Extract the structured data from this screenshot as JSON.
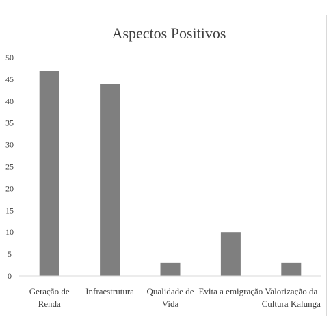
{
  "chart_data": {
    "type": "bar",
    "title": "Aspectos Positivos",
    "categories": [
      [
        "Geração de",
        "Renda"
      ],
      [
        "Infraestrutura"
      ],
      [
        "Qualidade de",
        "Vida"
      ],
      [
        "Evita a emigração"
      ],
      [
        "Valorização da",
        "Cultura Kalunga"
      ]
    ],
    "values": [
      47,
      44,
      3,
      10,
      3
    ],
    "ylim": [
      0,
      50
    ],
    "yticks": [
      "0",
      "5",
      "10",
      "15",
      "20",
      "25",
      "30",
      "35",
      "40",
      "45",
      "50"
    ],
    "grid": false,
    "legend": "none",
    "bar_color": "#7f7f7f",
    "axis_color": "#d9d9d9"
  }
}
